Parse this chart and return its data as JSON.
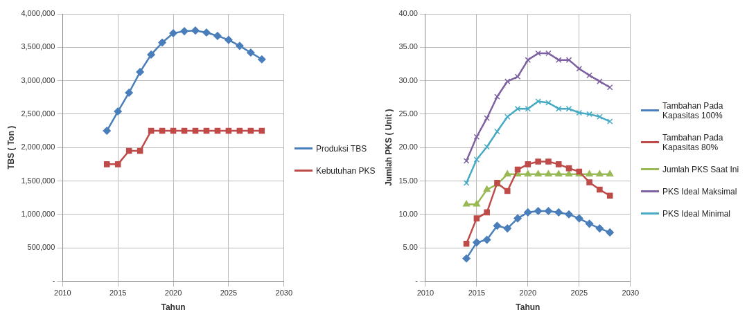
{
  "chart_data": [
    {
      "type": "line",
      "xlabel": "Tahun",
      "ylabel": "TBS ( Ton )",
      "legend": "right",
      "grid": true,
      "line_style": "solid",
      "xlim": [
        2010,
        2030
      ],
      "xticks": [
        2010,
        2015,
        2020,
        2025,
        2030
      ],
      "ylim": [
        0,
        4000000
      ],
      "yticks": [
        {
          "value": 0,
          "label": "-"
        },
        {
          "value": 500000,
          "label": "500,000"
        },
        {
          "value": 1000000,
          "label": "1,000,000"
        },
        {
          "value": 1500000,
          "label": "1,500,000"
        },
        {
          "value": 2000000,
          "label": "2,000,000"
        },
        {
          "value": 2500000,
          "label": "2,500,000"
        },
        {
          "value": 3000000,
          "label": "3,000,000"
        },
        {
          "value": 3500000,
          "label": "3,500,000"
        },
        {
          "value": 4000000,
          "label": "4,000,000"
        }
      ],
      "x": [
        2014,
        2015,
        2016,
        2017,
        2018,
        2019,
        2020,
        2021,
        2022,
        2023,
        2024,
        2025,
        2026,
        2027,
        2028
      ],
      "series": [
        {
          "name": "Produksi TBS",
          "color": "#4a7ebb",
          "marker": "diamond",
          "values": [
            2250000,
            2540000,
            2820000,
            3130000,
            3390000,
            3570000,
            3710000,
            3740000,
            3750000,
            3720000,
            3670000,
            3610000,
            3520000,
            3420000,
            3320000
          ]
        },
        {
          "name": "Kebutuhan PKS",
          "color": "#be4b48",
          "marker": "square",
          "values": [
            1750000,
            1750000,
            1950000,
            1950000,
            2250000,
            2250000,
            2250000,
            2250000,
            2250000,
            2250000,
            2250000,
            2250000,
            2250000,
            2250000,
            2250000
          ]
        }
      ]
    },
    {
      "type": "line",
      "xlabel": "Tahun",
      "ylabel": "Jumlah PKS ( Unit )",
      "legend": "right",
      "grid": true,
      "line_style": "solid",
      "xlim": [
        2010,
        2030
      ],
      "xticks": [
        2010,
        2015,
        2020,
        2025,
        2030
      ],
      "ylim": [
        0,
        40
      ],
      "yticks": [
        {
          "value": 0,
          "label": "-"
        },
        {
          "value": 5,
          "label": "5.00"
        },
        {
          "value": 10,
          "label": "10.00"
        },
        {
          "value": 15,
          "label": "15.00"
        },
        {
          "value": 20,
          "label": "20.00"
        },
        {
          "value": 25,
          "label": "25.00"
        },
        {
          "value": 30,
          "label": "30.00"
        },
        {
          "value": 35,
          "label": "35.00"
        },
        {
          "value": 40,
          "label": "40.00"
        }
      ],
      "x": [
        2014,
        2015,
        2016,
        2017,
        2018,
        2019,
        2020,
        2021,
        2022,
        2023,
        2024,
        2025,
        2026,
        2027,
        2028
      ],
      "series": [
        {
          "name": "Tambahan Pada Kapasitas 100%",
          "color": "#4a7ebb",
          "marker": "diamond",
          "values": [
            3.4,
            5.8,
            6.2,
            8.3,
            7.9,
            9.4,
            10.3,
            10.5,
            10.5,
            10.3,
            10.0,
            9.4,
            8.6,
            7.9,
            7.3
          ]
        },
        {
          "name": "Tambahan Pada Kapasitas 80%",
          "color": "#be4b48",
          "marker": "square",
          "values": [
            5.6,
            9.4,
            10.3,
            14.7,
            13.5,
            16.7,
            17.5,
            17.9,
            17.9,
            17.5,
            16.9,
            16.4,
            14.8,
            13.7,
            12.8
          ]
        },
        {
          "name": "Jumlah PKS Saat Ini",
          "color": "#98b954",
          "marker": "triangle",
          "values": [
            11.5,
            11.5,
            13.7,
            14.5,
            16.0,
            16.0,
            16.0,
            16.0,
            16.0,
            16.0,
            16.0,
            16.0,
            16.0,
            16.0,
            16.0
          ]
        },
        {
          "name": "PKS Ideal Maksimal",
          "color": "#7d60a0",
          "marker": "cross",
          "values": [
            18.0,
            21.6,
            24.4,
            27.6,
            29.9,
            30.6,
            33.1,
            34.1,
            34.1,
            33.1,
            33.1,
            31.8,
            30.8,
            29.9,
            29.0
          ]
        },
        {
          "name": "PKS Ideal Minimal",
          "color": "#46aac5",
          "marker": "cross",
          "values": [
            14.7,
            18.2,
            20.1,
            22.4,
            24.6,
            25.8,
            25.8,
            26.9,
            26.7,
            25.8,
            25.8,
            25.2,
            25.0,
            24.6,
            23.9
          ]
        }
      ]
    }
  ]
}
